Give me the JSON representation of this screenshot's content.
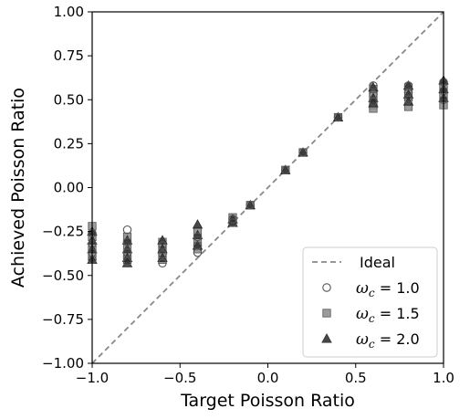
{
  "chart_data": {
    "type": "scatter",
    "xlabel": "Target Poisson Ratio",
    "ylabel": "Achieved Poisson Ratio",
    "xlim": [
      -1.0,
      1.0
    ],
    "ylim": [
      -1.0,
      1.0
    ],
    "xticks": [
      "−1.0",
      "−0.5",
      "0.0",
      "0.5",
      "1.0"
    ],
    "xtick_values": [
      -1.0,
      -0.5,
      0.0,
      0.5,
      1.0
    ],
    "yticks": [
      "−1.00",
      "−0.75",
      "−0.50",
      "−0.25",
      "0.00",
      "0.25",
      "0.50",
      "0.75",
      "1.00"
    ],
    "ytick_values": [
      -1.0,
      -0.75,
      -0.5,
      -0.25,
      0.0,
      0.25,
      0.5,
      0.75,
      1.0
    ],
    "grid": false,
    "legend_position": "bottom-right",
    "ideal_line": {
      "name": "Ideal",
      "color": "#888888",
      "from": [
        -1.0,
        -1.0
      ],
      "to": [
        1.0,
        1.0
      ]
    },
    "series": [
      {
        "name": "ω_c = 1.0",
        "label_symbol": "ω",
        "label_sub": "c",
        "label_value": " = 1.0",
        "marker": "circle",
        "color": "#555555",
        "x": [
          -1.0,
          -1.0,
          -1.0,
          -1.0,
          -0.8,
          -0.8,
          -0.8,
          -0.8,
          -0.6,
          -0.6,
          -0.6,
          -0.4,
          -0.4,
          -0.4,
          -0.2,
          -0.2,
          -0.1,
          0.1,
          0.2,
          0.4,
          0.6,
          0.6,
          0.6,
          0.8,
          0.8,
          0.8,
          1.0,
          1.0,
          1.0
        ],
        "y": [
          -0.26,
          -0.32,
          -0.37,
          -0.41,
          -0.24,
          -0.31,
          -0.37,
          -0.42,
          -0.33,
          -0.38,
          -0.43,
          -0.28,
          -0.33,
          -0.37,
          -0.18,
          -0.2,
          -0.1,
          0.1,
          0.2,
          0.4,
          0.58,
          0.53,
          0.49,
          0.58,
          0.54,
          0.5,
          0.6,
          0.55,
          0.5
        ]
      },
      {
        "name": "ω_c = 1.5",
        "label_symbol": "ω",
        "label_sub": "c",
        "label_value": " = 1.5",
        "marker": "square",
        "color": "#8a8a8a",
        "x": [
          -1.0,
          -1.0,
          -1.0,
          -1.0,
          -0.8,
          -0.8,
          -0.8,
          -0.8,
          -0.6,
          -0.6,
          -0.6,
          -0.4,
          -0.4,
          -0.4,
          -0.2,
          -0.2,
          -0.1,
          0.1,
          0.2,
          0.4,
          0.6,
          0.6,
          0.6,
          0.6,
          0.8,
          0.8,
          0.8,
          1.0,
          1.0,
          1.0
        ],
        "y": [
          -0.22,
          -0.28,
          -0.34,
          -0.39,
          -0.28,
          -0.33,
          -0.38,
          -0.41,
          -0.31,
          -0.36,
          -0.41,
          -0.25,
          -0.31,
          -0.35,
          -0.17,
          -0.19,
          -0.1,
          0.1,
          0.2,
          0.4,
          0.56,
          0.52,
          0.47,
          0.45,
          0.57,
          0.52,
          0.46,
          0.58,
          0.53,
          0.47
        ]
      },
      {
        "name": "ω_c = 2.0",
        "label_symbol": "ω",
        "label_sub": "c",
        "label_value": " = 2.0",
        "marker": "triangle",
        "color": "#333333",
        "x": [
          -1.0,
          -1.0,
          -1.0,
          -1.0,
          -0.8,
          -0.8,
          -0.8,
          -0.8,
          -0.6,
          -0.6,
          -0.6,
          -0.4,
          -0.4,
          -0.4,
          -0.2,
          -0.2,
          -0.1,
          0.1,
          0.2,
          0.4,
          0.6,
          0.6,
          0.6,
          0.8,
          0.8,
          0.8,
          1.0,
          1.0,
          1.0
        ],
        "y": [
          -0.25,
          -0.3,
          -0.35,
          -0.41,
          -0.3,
          -0.35,
          -0.4,
          -0.43,
          -0.3,
          -0.35,
          -0.4,
          -0.21,
          -0.27,
          -0.33,
          -0.18,
          -0.2,
          -0.1,
          0.1,
          0.2,
          0.4,
          0.57,
          0.51,
          0.48,
          0.58,
          0.53,
          0.49,
          0.61,
          0.56,
          0.51
        ]
      }
    ]
  }
}
